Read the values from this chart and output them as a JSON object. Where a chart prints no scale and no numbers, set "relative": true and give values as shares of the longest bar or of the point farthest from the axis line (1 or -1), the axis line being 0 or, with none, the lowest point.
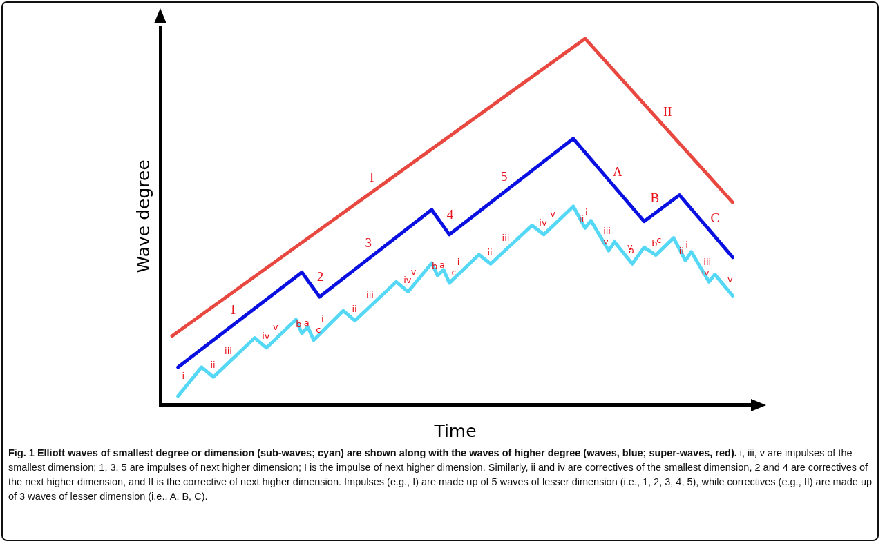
{
  "chart_data": {
    "type": "line",
    "relative": true,
    "xlabel": "Time",
    "ylabel": "Wave degree",
    "legend": false,
    "marker": "none",
    "line_style": "solid",
    "title": "Fig. 1 Elliott waves of smallest degree or dimension (sub-waves; cyan) are shown along with the waves of higher degree (waves, blue; super-waves, red).",
    "categories": [
      null,
      null,
      null,
      null,
      null,
      null,
      null,
      null,
      null,
      null,
      null,
      null,
      null,
      null,
      null,
      null,
      null,
      null,
      null,
      null,
      null,
      null,
      null,
      null,
      null,
      null,
      null,
      null,
      null,
      null,
      null,
      null,
      null,
      null,
      null,
      null,
      null,
      null,
      null,
      null,
      null,
      null,
      null,
      null,
      null,
      null,
      null,
      null,
      null,
      null,
      null,
      null,
      null,
      null,
      null,
      null,
      null,
      null,
      null,
      null,
      null,
      null,
      null,
      null,
      null,
      null,
      null,
      null,
      null,
      null,
      null,
      null,
      null,
      null,
      null,
      null,
      null,
      null,
      null,
      null,
      null,
      null,
      null,
      null,
      null,
      null,
      null,
      null,
      null,
      null,
      null,
      null,
      null,
      null,
      null,
      null,
      null,
      null,
      null,
      null,
      null
    ],
    "series": [
      {
        "color": "#e8483f",
        "values": [
          null,
          null,
          0.188,
          null,
          null,
          null,
          null,
          null,
          null,
          null,
          null,
          null,
          null,
          null,
          null,
          null,
          null,
          null,
          null,
          null,
          null,
          null,
          null,
          null,
          null,
          null,
          null,
          null,
          null,
          null,
          null,
          null,
          null,
          null,
          null,
          null,
          null,
          null,
          null,
          null,
          null,
          null,
          null,
          null,
          null,
          null,
          null,
          null,
          null,
          null,
          null,
          null,
          null,
          null,
          null,
          null,
          null,
          null,
          null,
          null,
          null,
          null,
          null,
          null,
          null,
          null,
          null,
          null,
          null,
          null,
          null,
          null,
          1,
          null,
          null,
          null,
          null,
          null,
          null,
          null,
          null,
          null,
          null,
          null,
          null,
          null,
          null,
          null,
          null,
          null,
          null,
          null,
          null,
          null,
          null,
          null,
          null,
          0.553,
          null,
          null,
          null
        ]
      },
      {
        "color": "#0a10e0",
        "values": [
          null,
          null,
          null,
          0.103,
          null,
          null,
          null,
          null,
          null,
          null,
          null,
          null,
          null,
          null,
          null,
          null,
          null,
          null,
          null,
          null,
          null,
          null,
          null,
          null,
          0.362,
          null,
          null,
          0.295,
          null,
          null,
          null,
          null,
          null,
          null,
          null,
          null,
          null,
          null,
          null,
          null,
          null,
          null,
          null,
          null,
          null,
          null,
          0.533,
          null,
          null,
          0.465,
          null,
          null,
          null,
          null,
          null,
          null,
          null,
          null,
          null,
          null,
          null,
          null,
          null,
          null,
          null,
          null,
          null,
          null,
          null,
          null,
          0.727,
          null,
          null,
          null,
          null,
          null,
          null,
          null,
          null,
          null,
          null,
          null,
          0.501,
          null,
          null,
          null,
          null,
          null,
          0.573,
          null,
          null,
          null,
          null,
          null,
          null,
          null,
          null,
          0.403,
          null,
          null,
          null
        ]
      },
      {
        "color": "#55d8f5",
        "values": [
          null,
          null,
          null,
          0.024,
          null,
          null,
          null,
          0.103,
          null,
          0.076,
          null,
          null,
          null,
          null,
          null,
          null,
          0.183,
          null,
          0.156,
          null,
          null,
          null,
          null,
          0.233,
          0.195,
          0.213,
          0.177,
          null,
          null,
          null,
          null,
          0.257,
          null,
          0.23,
          null,
          null,
          null,
          null,
          null,
          null,
          0.336,
          null,
          0.309,
          null,
          null,
          null,
          0.387,
          0.353,
          0.369,
          0.333,
          null,
          null,
          null,
          null,
          0.41,
          null,
          0.385,
          null,
          null,
          null,
          null,
          null,
          null,
          0.49,
          null,
          0.465,
          null,
          null,
          null,
          null,
          0.542,
          null,
          0.483,
          0.503,
          null,
          null,
          0.421,
          0.445,
          null,
          null,
          0.385,
          null,
          0.43,
          null,
          0.409,
          null,
          null,
          0.456,
          null,
          0.394,
          0.418,
          null,
          null,
          0.336,
          0.356,
          null,
          null,
          0.298,
          null,
          null,
          null
        ]
      }
    ],
    "annotations": [
      "I",
      "II",
      "1",
      "2",
      "3",
      "4",
      "5",
      "A",
      "B",
      "C",
      "i",
      "ii",
      "iii",
      "iv",
      "v",
      "a",
      "b",
      "c",
      "i",
      "ii",
      "iii",
      "iv",
      "v",
      "a",
      "b",
      "c",
      "i",
      "ii",
      "iii",
      "iv",
      "v",
      "i",
      "ii",
      "iii",
      "iv",
      "v",
      "a",
      "b",
      "c",
      "i",
      "ii",
      "iii",
      "iv",
      "v",
      "i, iii, v are impulses of the smallest dimension; 1, 3, 5 are impulses of next higher dimension; I is the impulse of next higher dimension. Similarly, ii and iv are correctives of the smallest dimension, 2 and 4 are correctives of the next higher dimension, and II is the corrective of next higher dimension. Impulses (e.g., I) are made up of 5 waves of lesser dimension (i.e., 1, 2, 3, 4, 5), while correctives (e.g., II) are made up of 3 waves of lesser dimension (i.e., A, B, C)."
    ]
  }
}
